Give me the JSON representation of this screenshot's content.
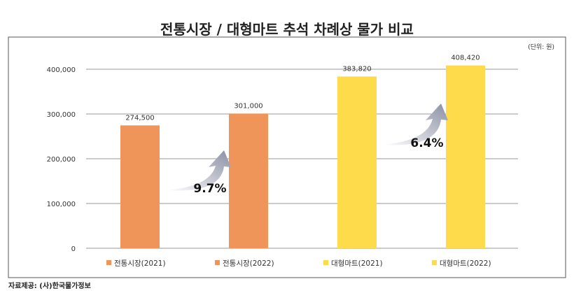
{
  "chart_data": {
    "type": "bar",
    "title": "전통시장 / 대형마트 추석 차례상 물가 비교",
    "unit_note": "(단위: 원)",
    "categories": [
      "전통시장(2021)",
      "전통시장(2022)",
      "대형마트(2021)",
      "대형마트(2022)"
    ],
    "values": [
      274500,
      301000,
      383820,
      408420
    ],
    "data_labels": [
      "274,500",
      "301,000",
      "383,820",
      "408,420"
    ],
    "colors": [
      "#f0955a",
      "#f0955a",
      "#fddb4a",
      "#fddb4a"
    ],
    "ylim": [
      0,
      400000
    ],
    "yticks": [
      0,
      100000,
      200000,
      300000,
      400000
    ],
    "ytick_labels": [
      "0",
      "100,000",
      "200,000",
      "300,000",
      "400,000"
    ],
    "grid": true,
    "legend_placement": "bottom",
    "annotations": [
      {
        "text": "9.7%",
        "between": [
          0,
          1
        ]
      },
      {
        "text": "6.4%",
        "between": [
          2,
          3
        ]
      }
    ]
  },
  "source": "자료제공: (사)한국물가정보"
}
